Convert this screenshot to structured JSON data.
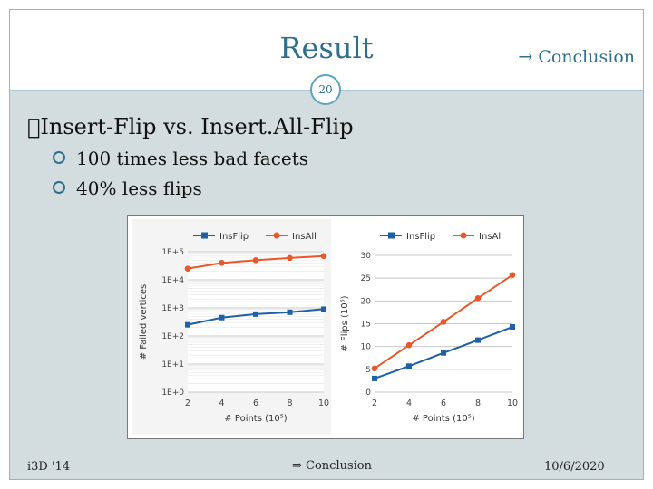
{
  "slide": {
    "title": "Result",
    "nav_link": "→ Conclusion",
    "page_number": "20",
    "heading": "Insert-Flip vs. Insert.All-Flip",
    "bullets": [
      "100 times less bad facets",
      "40% less flips"
    ],
    "footer_left": "i3D '14",
    "footer_center": "⇒ Conclusion",
    "footer_right": "10/6/2020"
  },
  "colors": {
    "insflip": "#1f5fa6",
    "insall": "#e8582a",
    "accent": "#2f6f8a"
  },
  "chart_data": [
    {
      "type": "line",
      "xlabel": "# Points (10⁵)",
      "ylabel": "# Failed vertices",
      "y_scale": "log",
      "x": [
        2,
        4,
        6,
        8,
        10
      ],
      "x_ticks": [
        "2",
        "4",
        "6",
        "8",
        "10"
      ],
      "y_ticks": [
        "1E+0",
        "1E+1",
        "1E+2",
        "1E+3",
        "1E+4",
        "1E+5"
      ],
      "ylim": [
        1,
        100000
      ],
      "legend_position": "top",
      "grid": true,
      "series": [
        {
          "name": "InsFlip",
          "values": [
            250,
            450,
            600,
            700,
            900
          ]
        },
        {
          "name": "InsAll",
          "values": [
            25000,
            40000,
            50000,
            60000,
            70000
          ]
        }
      ]
    },
    {
      "type": "line",
      "xlabel": "# Points (10⁵)",
      "ylabel": "# Flips (10⁶)",
      "x": [
        2,
        4,
        6,
        8,
        10
      ],
      "x_ticks": [
        "2",
        "4",
        "6",
        "8",
        "10"
      ],
      "y_ticks": [
        "0",
        "5",
        "10",
        "15",
        "20",
        "25",
        "30"
      ],
      "ylim": [
        0,
        30
      ],
      "legend_position": "top",
      "grid": true,
      "series": [
        {
          "name": "InsFlip",
          "values": [
            3,
            5.7,
            8.6,
            11.4,
            14.3
          ]
        },
        {
          "name": "InsAll",
          "values": [
            5.2,
            10.3,
            15.4,
            20.6,
            25.7
          ]
        }
      ]
    }
  ]
}
